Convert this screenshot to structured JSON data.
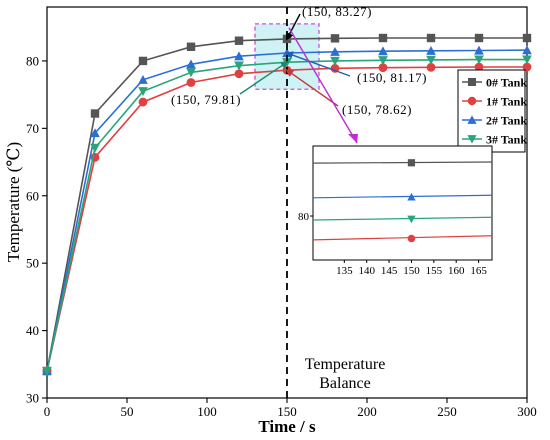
{
  "chart_data": {
    "type": "line",
    "xlabel": "Time / s",
    "ylabel": "Temperature (℃)",
    "xlim": [
      0,
      300
    ],
    "ylim": [
      30,
      88
    ],
    "x_ticks": [
      0,
      50,
      100,
      150,
      200,
      250,
      300
    ],
    "y_ticks": [
      30,
      40,
      50,
      60,
      70,
      80
    ],
    "grid": false,
    "legend_position": "right",
    "x": [
      0,
      30,
      60,
      90,
      120,
      150,
      180,
      210,
      240,
      270,
      300
    ],
    "series": [
      {
        "name": "0# Tank",
        "color": "#555555",
        "marker": "square",
        "values": [
          34.0,
          72.2,
          80.0,
          82.1,
          83.0,
          83.27,
          83.35,
          83.4,
          83.4,
          83.4,
          83.4
        ]
      },
      {
        "name": "1# Tank",
        "color": "#e04040",
        "marker": "circle",
        "values": [
          34.0,
          65.7,
          73.9,
          76.8,
          78.1,
          78.62,
          78.9,
          79.0,
          79.05,
          79.1,
          79.1
        ]
      },
      {
        "name": "2# Tank",
        "color": "#2b6fd6",
        "marker": "triangle-up",
        "values": [
          34.0,
          69.3,
          77.2,
          79.5,
          80.7,
          81.17,
          81.35,
          81.45,
          81.5,
          81.55,
          81.6
        ]
      },
      {
        "name": "3# Tank",
        "color": "#2aa57a",
        "marker": "triangle-down",
        "values": [
          34.0,
          67.1,
          75.5,
          78.3,
          79.3,
          79.81,
          80.0,
          80.1,
          80.15,
          80.2,
          80.2
        ]
      }
    ],
    "reference_line": {
      "x": 150,
      "label": [
        "Temperature",
        "Balance"
      ]
    },
    "annotations": [
      {
        "x": 150,
        "y": 83.27,
        "text": "(150, 83.27)",
        "color": "#000000",
        "position": "top-right"
      },
      {
        "x": 150,
        "y": 81.17,
        "text": "(150, 81.17)",
        "color": "#1f5fb0",
        "position": "right"
      },
      {
        "x": 150,
        "y": 79.81,
        "text": "(150, 79.81)",
        "color": "#1a8a70",
        "position": "left"
      },
      {
        "x": 150,
        "y": 78.62,
        "text": "(150, 78.62)",
        "color": "#c03a3a",
        "position": "bottom-right"
      }
    ],
    "zoom_region": {
      "xlim": [
        130,
        170
      ],
      "ylim": [
        75.8,
        85.5
      ]
    },
    "inset": {
      "xlim": [
        128,
        168
      ],
      "ylim": [
        77.3,
        84.3
      ],
      "x_ticks": [
        135,
        140,
        145,
        150,
        155,
        160,
        165
      ],
      "y_ticks": [
        80
      ],
      "marker_x": 150
    }
  }
}
